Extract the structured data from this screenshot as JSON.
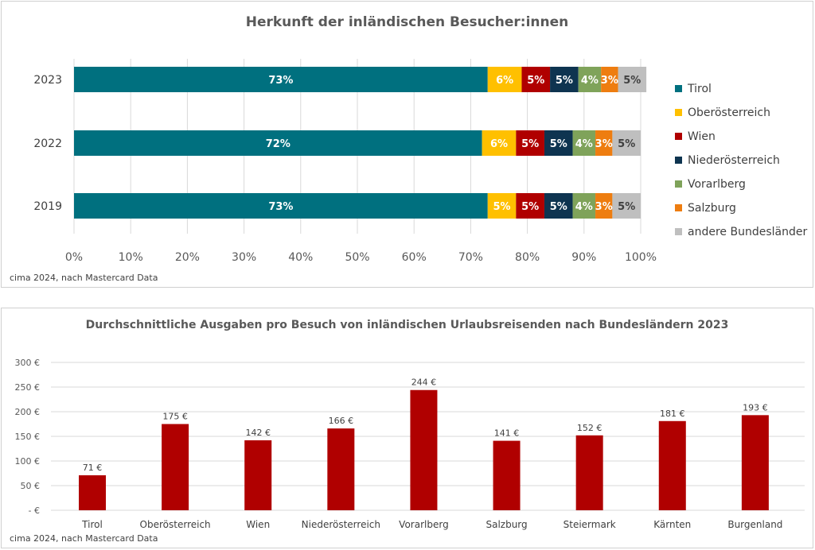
{
  "source_note": "cima 2024, nach Mastercard Data",
  "chart_data": [
    {
      "type": "bar",
      "orientation": "horizontal",
      "stacked": true,
      "title": "Herkunft der inländischen Besucher:innen",
      "categories": [
        "2023",
        "2022",
        "2019"
      ],
      "series": [
        {
          "name": "Tirol",
          "color": "#00707F",
          "values": [
            73,
            72,
            73
          ],
          "labels": [
            "73%",
            "72%",
            "73%"
          ]
        },
        {
          "name": "Oberösterreich",
          "color": "#FFC000",
          "values": [
            6,
            6,
            5
          ],
          "labels": [
            "6%",
            "6%",
            "5%"
          ]
        },
        {
          "name": "Wien",
          "color": "#B00000",
          "values": [
            5,
            5,
            5
          ],
          "labels": [
            "5%",
            "5%",
            "5%"
          ]
        },
        {
          "name": "Niederösterreich",
          "color": "#0E3450",
          "values": [
            5,
            5,
            5
          ],
          "labels": [
            "5%",
            "5%",
            "5%"
          ]
        },
        {
          "name": "Vorarlberg",
          "color": "#7FA35A",
          "values": [
            4,
            4,
            4
          ],
          "labels": [
            "4%",
            "4%",
            "4%"
          ]
        },
        {
          "name": "Salzburg",
          "color": "#EE7D10",
          "values": [
            3,
            3,
            3
          ],
          "labels": [
            "3%",
            "3%",
            "3%"
          ]
        },
        {
          "name": "andere Bundesländer",
          "color": "#BFBFBF",
          "values": [
            5,
            5,
            5
          ],
          "labels": [
            "5%",
            "5%",
            "5%"
          ]
        }
      ],
      "xlim": [
        0,
        100
      ],
      "xticks": [
        "0%",
        "10%",
        "20%",
        "30%",
        "40%",
        "50%",
        "60%",
        "70%",
        "80%",
        "90%",
        "100%"
      ],
      "grid": true,
      "legend": "right"
    },
    {
      "type": "bar",
      "title": "Durchschnittliche Ausgaben pro Besuch von inländischen Urlaubsreisenden nach Bundesländern 2023",
      "categories": [
        "Tirol",
        "Oberösterreich",
        "Wien",
        "Niederösterreich",
        "Vorarlberg",
        "Salzburg",
        "Steiermark",
        "Kärnten",
        "Burgenland"
      ],
      "values": [
        71,
        175,
        142,
        166,
        244,
        141,
        152,
        181,
        193
      ],
      "labels": [
        "71 €",
        "175 €",
        "142 €",
        "166 €",
        "244 €",
        "141 €",
        "152 €",
        "181 €",
        "193 €"
      ],
      "color": "#B00000",
      "ylim": [
        0,
        300
      ],
      "yticks": [
        "-   €",
        "50 €",
        "100 €",
        "150 €",
        "200 €",
        "250 €",
        "300 €"
      ],
      "grid": true
    }
  ]
}
